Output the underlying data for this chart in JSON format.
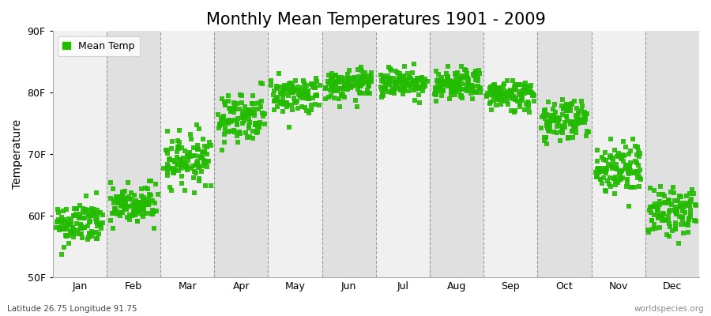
{
  "title": "Monthly Mean Temperatures 1901 - 2009",
  "ylabel": "Temperature",
  "bottom_left": "Latitude 26.75 Longitude 91.75",
  "bottom_right": "worldspecies.org",
  "legend_label": "Mean Temp",
  "dot_color": "#22bb00",
  "bg_color_light": "#f0f0f0",
  "bg_color_dark": "#e0e0e0",
  "ylim": [
    50,
    90
  ],
  "yticks": [
    50,
    60,
    70,
    80,
    90
  ],
  "ytick_labels": [
    "50F",
    "60F",
    "70F",
    "80F",
    "90F"
  ],
  "months": [
    "Jan",
    "Feb",
    "Mar",
    "Apr",
    "May",
    "Jun",
    "Jul",
    "Aug",
    "Sep",
    "Oct",
    "Nov",
    "Dec"
  ],
  "monthly_means": [
    58.5,
    61.5,
    69.0,
    76.0,
    79.5,
    81.0,
    81.5,
    81.0,
    79.5,
    75.5,
    67.5,
    60.5
  ],
  "monthly_stds": [
    1.8,
    1.8,
    2.0,
    2.0,
    1.5,
    1.2,
    1.2,
    1.2,
    1.3,
    1.8,
    2.2,
    2.0
  ],
  "monthly_trends": [
    0.003,
    0.003,
    0.003,
    0.003,
    0.003,
    0.003,
    0.003,
    0.003,
    0.003,
    0.003,
    0.003,
    0.003
  ],
  "n_years": 109,
  "start_year": 1901,
  "title_fontsize": 15,
  "label_fontsize": 10,
  "tick_fontsize": 9,
  "dot_size": 18,
  "dot_alpha": 0.9
}
